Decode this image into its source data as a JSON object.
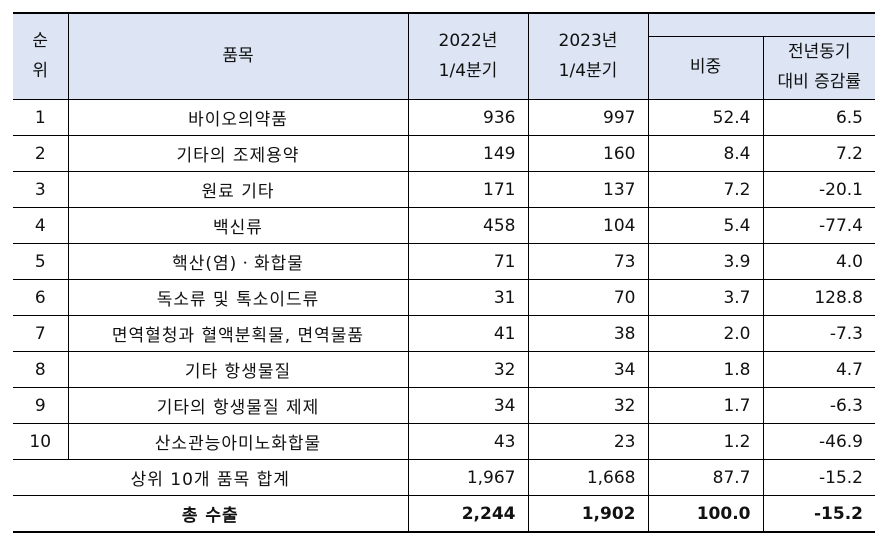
{
  "headers": {
    "rank": "순\n위",
    "item": "품목",
    "y2022": "2022년\n1/4분기",
    "y2023": "2023년\n1/4분기",
    "share": "비중",
    "yoy": "전년동기\n대비 증감률"
  },
  "rows": [
    {
      "rank": "1",
      "item": "바이오의약품",
      "y2022": "936",
      "y2023": "997",
      "share": "52.4",
      "yoy": "6.5"
    },
    {
      "rank": "2",
      "item": "기타의 조제용약",
      "y2022": "149",
      "y2023": "160",
      "share": "8.4",
      "yoy": "7.2"
    },
    {
      "rank": "3",
      "item": "원료 기타",
      "y2022": "171",
      "y2023": "137",
      "share": "7.2",
      "yoy": "-20.1"
    },
    {
      "rank": "4",
      "item": "백신류",
      "y2022": "458",
      "y2023": "104",
      "share": "5.4",
      "yoy": "-77.4"
    },
    {
      "rank": "5",
      "item": "핵산(염)ㆍ화합물",
      "y2022": "71",
      "y2023": "73",
      "share": "3.9",
      "yoy": "4.0"
    },
    {
      "rank": "6",
      "item": "독소류 및 톡소이드류",
      "y2022": "31",
      "y2023": "70",
      "share": "3.7",
      "yoy": "128.8"
    },
    {
      "rank": "7",
      "item": "면역혈청과 혈액분획물, 면역물품",
      "y2022": "41",
      "y2023": "38",
      "share": "2.0",
      "yoy": "-7.3"
    },
    {
      "rank": "8",
      "item": "기타 항생물질",
      "y2022": "32",
      "y2023": "34",
      "share": "1.8",
      "yoy": "4.7"
    },
    {
      "rank": "9",
      "item": "기타의 항생물질 제제",
      "y2022": "34",
      "y2023": "32",
      "share": "1.7",
      "yoy": "-6.3"
    },
    {
      "rank": "10",
      "item": "산소관능아미노화합물",
      "y2022": "43",
      "y2023": "23",
      "share": "1.2",
      "yoy": "-46.9"
    }
  ],
  "subtotal": {
    "label": "상위 10개 품목 합계",
    "y2022": "1,967",
    "y2023": "1,668",
    "share": "87.7",
    "yoy": "-15.2"
  },
  "total": {
    "label": "총 수출",
    "y2022": "2,244",
    "y2023": "1,902",
    "share": "100.0",
    "yoy": "-15.2"
  }
}
